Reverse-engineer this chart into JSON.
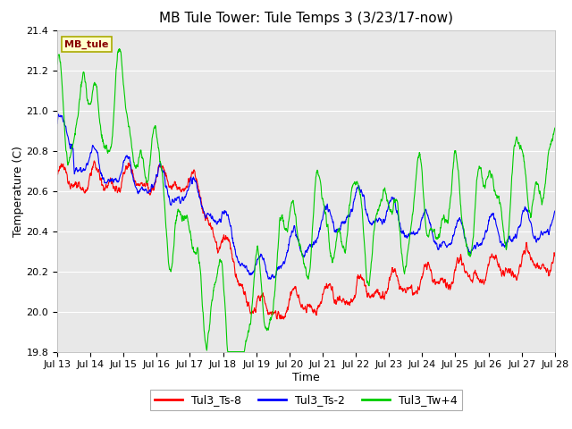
{
  "title": "MB Tule Tower: Tule Temps 3 (3/23/17-now)",
  "xlabel": "Time",
  "ylabel": "Temperature (C)",
  "ylim": [
    19.8,
    21.4
  ],
  "yticks": [
    19.8,
    20.0,
    20.2,
    20.4,
    20.6,
    20.8,
    21.0,
    21.2,
    21.4
  ],
  "x_tick_labels": [
    "Jul 13",
    "Jul 14",
    "Jul 15",
    "Jul 16",
    "Jul 17",
    "Jul 18",
    "Jul 19",
    "Jul 20",
    "Jul 21",
    "Jul 22",
    "Jul 23",
    "Jul 24",
    "Jul 25",
    "Jul 26",
    "Jul 27",
    "Jul 28"
  ],
  "legend_label": "MB_tule",
  "legend_entries": [
    "Tul3_Ts-8",
    "Tul3_Ts-2",
    "Tul3_Tw+4"
  ],
  "color_red": "#ff0000",
  "color_blue": "#0000ff",
  "color_green": "#00cc00",
  "bg_color": "#e8e8e8",
  "line_width": 0.8,
  "title_fontsize": 11,
  "axis_fontsize": 9,
  "tick_fontsize": 8,
  "legend_box_facecolor": "#ffffcc",
  "legend_box_edgecolor": "#aaaa00"
}
